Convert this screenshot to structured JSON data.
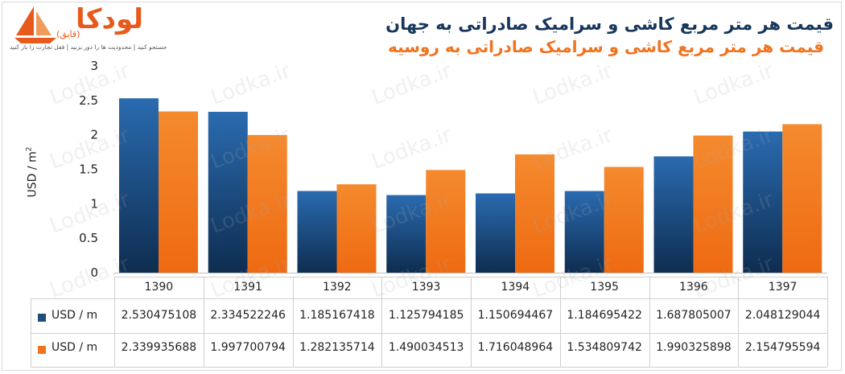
{
  "logo": {
    "name": "لودکا",
    "sub": "(قایق)",
    "tagline": "جستجو کنید | محدودیت ها را دور بزنید | قفل تجارت را باز کنید"
  },
  "titles": {
    "world": "قیمت هر متر مربع کاشی و سرامیک صادراتی به جهان",
    "russia": "قیمت هر متر مربع کاشی و سرامیک صادراتی به روسیه"
  },
  "watermark": "Lodka.ir",
  "colors": {
    "series1": "#1f4e79",
    "series2": "#f07320"
  },
  "chart_data": {
    "type": "bar",
    "ylabel": "USD / m²",
    "ylim": [
      0,
      3
    ],
    "yticks": [
      "0",
      "0.5",
      "1",
      "1.5",
      "2",
      "2.5",
      "3"
    ],
    "categories": [
      "1390",
      "1391",
      "1392",
      "1393",
      "1394",
      "1395",
      "1396",
      "1397"
    ],
    "series": [
      {
        "name": "USD / m",
        "values": [
          2.530475108,
          2.334522246,
          1.185167418,
          1.125794185,
          1.150694467,
          1.184695422,
          1.687805007,
          2.048129044
        ],
        "labels": [
          "2.530475108",
          "2.334522246",
          "1.185167418",
          "1.125794185",
          "1.150694467",
          "1.184695422",
          "1.687805007",
          "2.048129044"
        ]
      },
      {
        "name": "USD / m",
        "values": [
          2.339935688,
          1.997700794,
          1.282135714,
          1.490034513,
          1.716048964,
          1.534809742,
          1.990325898,
          2.154795594
        ],
        "labels": [
          "2.339935688",
          "1.997700794",
          "1.282135714",
          "1.490034513",
          "1.716048964",
          "1.534809742",
          "1.990325898",
          "2.154795594"
        ]
      }
    ],
    "grid": false,
    "legend": "data-table"
  }
}
